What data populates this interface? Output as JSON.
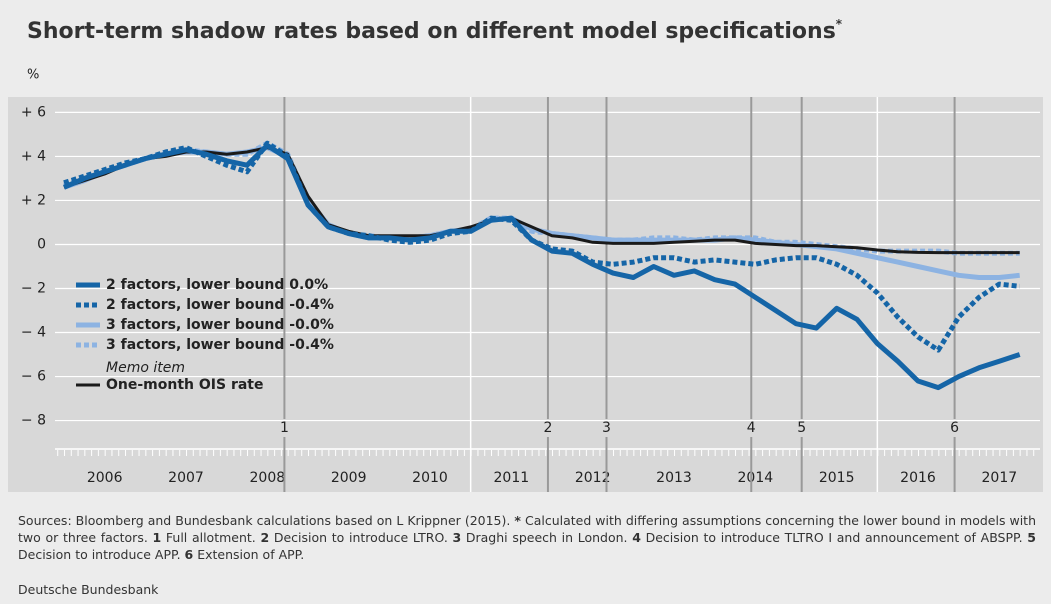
{
  "chart_data": {
    "type": "line",
    "title": "Short-term shadow rates based on different model specifications",
    "title_mark": "*",
    "y_label": "%",
    "xlim": [
      2006,
      2018
    ],
    "xticks": [
      {
        "value": 2006.5,
        "label": "2006"
      },
      {
        "value": 2007.5,
        "label": "2007"
      },
      {
        "value": 2008.5,
        "label": "2008"
      },
      {
        "value": 2009.5,
        "label": "2009"
      },
      {
        "value": 2010.5,
        "label": "2010"
      },
      {
        "value": 2011.5,
        "label": "2011"
      },
      {
        "value": 2012.5,
        "label": "2012"
      },
      {
        "value": 2013.5,
        "label": "2013"
      },
      {
        "value": 2014.5,
        "label": "2014"
      },
      {
        "value": 2015.5,
        "label": "2015"
      },
      {
        "value": 2016.5,
        "label": "2016"
      },
      {
        "value": 2017.5,
        "label": "2017"
      }
    ],
    "xgrid": [
      2011,
      2016
    ],
    "ylim": [
      -9.2,
      6.7
    ],
    "yticks": [
      {
        "value": 6,
        "label": "+ 6"
      },
      {
        "value": 4,
        "label": "+ 4"
      },
      {
        "value": 2,
        "label": "+ 2"
      },
      0,
      {
        "value": -2,
        "label": "− 2"
      },
      {
        "value": -4,
        "label": "− 4"
      },
      {
        "value": -6,
        "label": "− 6"
      },
      {
        "value": -8,
        "label": "− 8"
      }
    ],
    "grid": true,
    "events": [
      {
        "x": 2008.71,
        "label": "1"
      },
      {
        "x": 2011.95,
        "label": "2"
      },
      {
        "x": 2012.67,
        "label": "3"
      },
      {
        "x": 2014.45,
        "label": "4"
      },
      {
        "x": 2015.07,
        "label": "5"
      },
      {
        "x": 2016.95,
        "label": "6"
      }
    ],
    "x": [
      2006.0,
      2006.25,
      2006.5,
      2006.75,
      2007.0,
      2007.25,
      2007.5,
      2007.75,
      2008.0,
      2008.25,
      2008.5,
      2008.75,
      2009.0,
      2009.25,
      2009.5,
      2009.75,
      2010.0,
      2010.25,
      2010.5,
      2010.75,
      2011.0,
      2011.25,
      2011.5,
      2011.75,
      2012.0,
      2012.25,
      2012.5,
      2012.75,
      2013.0,
      2013.25,
      2013.5,
      2013.75,
      2014.0,
      2014.25,
      2014.5,
      2014.75,
      2015.0,
      2015.25,
      2015.5,
      2015.75,
      2016.0,
      2016.25,
      2016.5,
      2016.75,
      2017.0,
      2017.25,
      2017.5,
      2017.75
    ],
    "legend_note": "Memo item",
    "series": [
      {
        "name": "2 factors, lower bound 0.0%",
        "color": "#1565a7",
        "width": 5,
        "dashed": false,
        "values": [
          2.6,
          3.0,
          3.3,
          3.6,
          3.9,
          4.1,
          4.3,
          4.1,
          3.8,
          3.6,
          4.5,
          3.9,
          1.8,
          0.8,
          0.5,
          0.3,
          0.3,
          0.2,
          0.3,
          0.6,
          0.6,
          1.1,
          1.2,
          0.2,
          -0.3,
          -0.4,
          -0.9,
          -1.3,
          -1.5,
          -1.0,
          -1.4,
          -1.2,
          -1.6,
          -1.8,
          -2.4,
          -3.0,
          -3.6,
          -3.8,
          -2.9,
          -3.4,
          -4.5,
          -5.3,
          -6.2,
          -6.5,
          -6.0,
          -5.6,
          -5.3,
          -5.0
        ]
      },
      {
        "name": "2 factors, lower bound -0.4%",
        "color": "#1565a7",
        "width": 5,
        "dashed": true,
        "values": [
          2.8,
          3.1,
          3.4,
          3.7,
          3.9,
          4.2,
          4.4,
          4.0,
          3.6,
          3.3,
          4.6,
          4.0,
          1.8,
          0.8,
          0.5,
          0.4,
          0.2,
          0.1,
          0.2,
          0.5,
          0.6,
          1.2,
          1.1,
          0.2,
          -0.2,
          -0.3,
          -0.8,
          -0.9,
          -0.8,
          -0.6,
          -0.6,
          -0.8,
          -0.7,
          -0.8,
          -0.9,
          -0.7,
          -0.6,
          -0.6,
          -0.9,
          -1.4,
          -2.2,
          -3.3,
          -4.2,
          -4.8,
          -3.3,
          -2.4,
          -1.8,
          -1.9
        ]
      },
      {
        "name": "3 factors, lower bound -0.0%",
        "color": "#8db3e2",
        "width": 5,
        "dashed": false,
        "values": [
          2.6,
          2.9,
          3.3,
          3.6,
          3.9,
          4.1,
          4.2,
          4.2,
          4.1,
          4.2,
          4.4,
          4.0,
          2.0,
          0.9,
          0.5,
          0.3,
          0.3,
          0.3,
          0.4,
          0.6,
          0.7,
          1.1,
          1.2,
          0.7,
          0.5,
          0.4,
          0.3,
          0.2,
          0.2,
          0.2,
          0.2,
          0.2,
          0.2,
          0.3,
          0.2,
          0.1,
          0.0,
          -0.1,
          -0.2,
          -0.4,
          -0.6,
          -0.8,
          -1.0,
          -1.2,
          -1.4,
          -1.5,
          -1.5,
          -1.4
        ]
      },
      {
        "name": "3 factors, lower bound -0.4%",
        "color": "#8db3e2",
        "width": 5,
        "dashed": true,
        "values": [
          2.7,
          3.0,
          3.3,
          3.6,
          3.9,
          4.2,
          4.3,
          4.2,
          4.1,
          4.1,
          4.6,
          4.1,
          2.0,
          0.9,
          0.5,
          0.4,
          0.3,
          0.3,
          0.4,
          0.6,
          0.7,
          1.2,
          1.2,
          0.6,
          0.5,
          0.4,
          0.3,
          0.2,
          0.2,
          0.3,
          0.3,
          0.2,
          0.3,
          0.3,
          0.3,
          0.1,
          0.1,
          0.0,
          -0.1,
          -0.2,
          -0.3,
          -0.3,
          -0.3,
          -0.3,
          -0.4,
          -0.4,
          -0.4,
          -0.4
        ]
      },
      {
        "name": "One-month OIS rate",
        "color": "#1a1a1a",
        "width": 3,
        "dashed": false,
        "memo": true,
        "values": [
          2.6,
          2.9,
          3.2,
          3.6,
          3.9,
          4.0,
          4.2,
          4.2,
          4.1,
          4.2,
          4.4,
          4.1,
          2.2,
          0.9,
          0.6,
          0.4,
          0.4,
          0.4,
          0.4,
          0.6,
          0.8,
          1.1,
          1.2,
          0.8,
          0.4,
          0.3,
          0.1,
          0.05,
          0.05,
          0.05,
          0.1,
          0.15,
          0.2,
          0.2,
          0.05,
          0.0,
          -0.05,
          -0.05,
          -0.1,
          -0.15,
          -0.25,
          -0.33,
          -0.36,
          -0.37,
          -0.37,
          -0.37,
          -0.37,
          -0.37
        ]
      }
    ]
  },
  "footer": [
    {
      "text": "Sources: Bloomberg and Bundesbank calculations based on L Krippner (2015). ",
      "bold": false
    },
    {
      "text": "*",
      "bold": true
    },
    {
      "text": " Calculated with differing assumptions concerning the lower bound in models with two or three factors. ",
      "bold": false
    },
    {
      "text": "1",
      "bold": true
    },
    {
      "text": " Full allotment. ",
      "bold": false
    },
    {
      "text": "2",
      "bold": true
    },
    {
      "text": " Decision to introduce LTRO. ",
      "bold": false
    },
    {
      "text": "3",
      "bold": true
    },
    {
      "text": " Draghi speech in London. ",
      "bold": false
    },
    {
      "text": "4",
      "bold": true
    },
    {
      "text": " Decision to introduce TLTRO I and announcement of ABSPP. ",
      "bold": false
    },
    {
      "text": "5",
      "bold": true
    },
    {
      "text": " Decision to introduce APP. ",
      "bold": false
    },
    {
      "text": "6",
      "bold": true
    },
    {
      "text": " Extension of APP.",
      "bold": false
    }
  ],
  "credit": "Deutsche Bundesbank"
}
